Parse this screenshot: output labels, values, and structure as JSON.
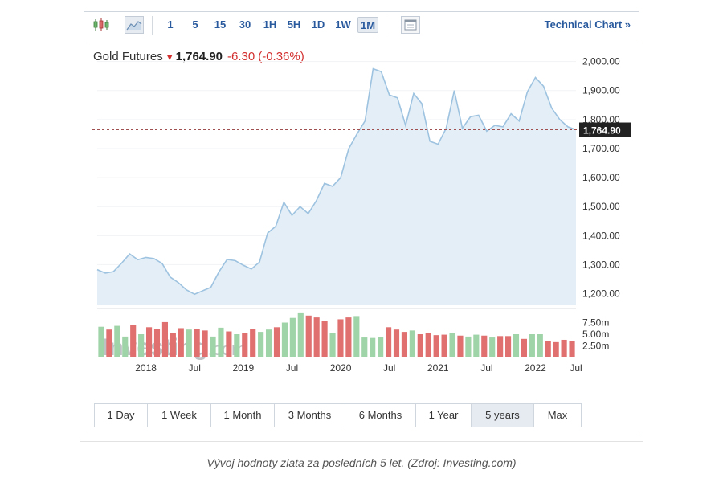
{
  "toolbar": {
    "icons": [
      "candlestick-icon",
      "area-chart-icon",
      "calendar-icon"
    ],
    "intervals": [
      "1",
      "5",
      "15",
      "30",
      "1H",
      "5H",
      "1D",
      "1W",
      "1M"
    ],
    "active_interval": "1M",
    "technical_link": "Technical Chart »"
  },
  "quote": {
    "name": "Gold Futures",
    "direction": "down",
    "price": "1,764.90",
    "change": "-6.30",
    "change_pct": "(-0.36%)"
  },
  "watermark": {
    "brand": "Investing",
    "suffix": ".com"
  },
  "ranges": [
    "1 Day",
    "1 Week",
    "1 Month",
    "3 Months",
    "6 Months",
    "1 Year",
    "5 years",
    "Max"
  ],
  "active_range": "5 years",
  "caption": "Vývoj hodnoty zlata za posledních 5 let. (Zdroj: Investing.com)",
  "colors": {
    "line": "#9ec3e0",
    "area": "#e3eef7",
    "vol_up": "#9fd3a8",
    "vol_down": "#e07070",
    "price_label_bg": "#222222",
    "accent": "#2a5a9e",
    "down": "#d32f2f"
  },
  "chart_data": [
    {
      "type": "area",
      "x_start": "2017-07",
      "x_step": "1 month",
      "y": [
        1283,
        1271,
        1276,
        1305,
        1337,
        1317,
        1325,
        1321,
        1304,
        1257,
        1238,
        1213,
        1198,
        1210,
        1222,
        1275,
        1318,
        1314,
        1298,
        1285,
        1309,
        1409,
        1432,
        1515,
        1470,
        1500,
        1476,
        1520,
        1580,
        1570,
        1600,
        1700,
        1750,
        1795,
        1975,
        1965,
        1885,
        1875,
        1780,
        1890,
        1855,
        1725,
        1715,
        1770,
        1900,
        1770,
        1810,
        1815,
        1760,
        1780,
        1775,
        1820,
        1795,
        1895,
        1945,
        1915,
        1840,
        1800,
        1775,
        1764.9
      ],
      "ylim": [
        1160,
        2010
      ],
      "y_ticks": [
        "1,200.00",
        "1,300.00",
        "1,400.00",
        "1,500.00",
        "1,600.00",
        "1,700.00",
        "1,800.00",
        "1,900.00",
        "2,000.00"
      ],
      "x_tick_labels": [
        "2018",
        "Jul",
        "2019",
        "Jul",
        "2020",
        "Jul",
        "2021",
        "Jul",
        "2022",
        "Jul"
      ],
      "last_price_label": "1,764.90",
      "last_price": 1764.9
    },
    {
      "type": "bar",
      "values": [
        6.6,
        6.0,
        6.8,
        4.5,
        7.0,
        5.0,
        6.5,
        6.2,
        7.6,
        5.2,
        6.3,
        6.0,
        6.2,
        5.8,
        4.5,
        6.4,
        5.6,
        5.0,
        5.2,
        6.1,
        5.5,
        6.0,
        6.5,
        7.5,
        8.5,
        9.5,
        9.0,
        8.6,
        7.8,
        5.2,
        8.2,
        8.6,
        8.9,
        4.3,
        4.2,
        4.4,
        6.5,
        6.0,
        5.5,
        5.8,
        5.0,
        5.2,
        4.8,
        4.9,
        5.3,
        4.7,
        4.5,
        4.9,
        4.7,
        4.3,
        4.6,
        4.6,
        5.0,
        4.0,
        5.0,
        5.0,
        3.5,
        3.3,
        3.8,
        3.5
      ],
      "up": [
        true,
        false,
        true,
        true,
        false,
        true,
        false,
        false,
        false,
        false,
        false,
        true,
        false,
        false,
        true,
        true,
        false,
        true,
        false,
        false,
        true,
        true,
        false,
        true,
        true,
        true,
        false,
        false,
        false,
        true,
        false,
        false,
        true,
        true,
        true,
        true,
        false,
        false,
        false,
        true,
        false,
        false,
        false,
        false,
        true,
        false,
        true,
        true,
        false,
        true,
        false,
        false,
        true,
        false,
        true,
        true,
        false,
        false,
        false,
        false
      ],
      "ylim": [
        0,
        10
      ],
      "y_ticks": [
        "2.50m",
        "5.00m",
        "7.50m"
      ]
    }
  ]
}
